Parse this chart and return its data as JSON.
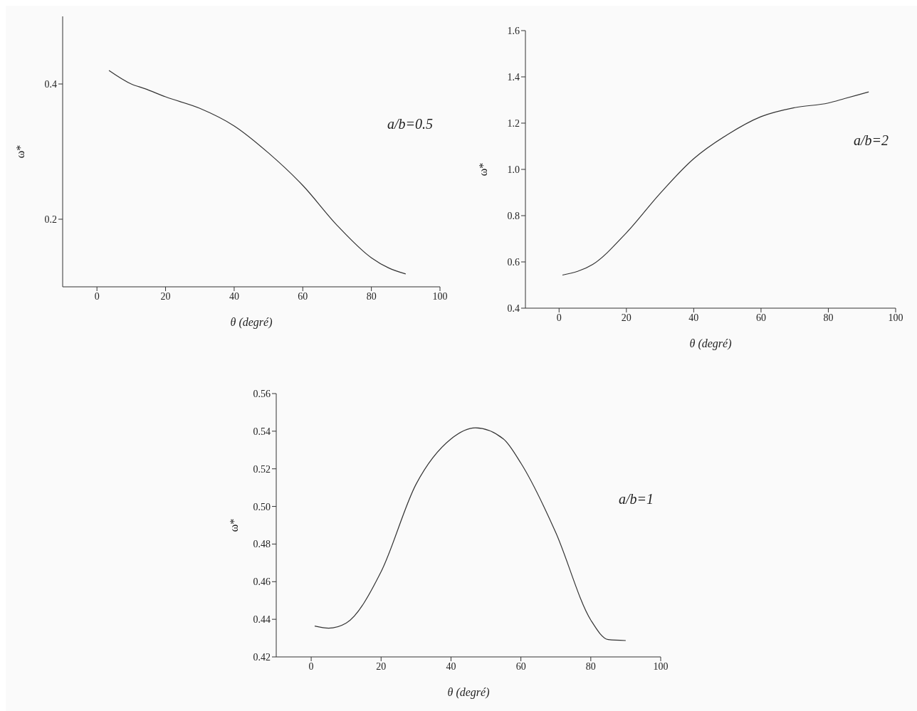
{
  "chart_data": [
    {
      "type": "line",
      "xlabel": "θ (degré)",
      "ylabel": "ω*",
      "annotations": [
        "a/b=0.5"
      ],
      "xlim": [
        -10,
        100
      ],
      "xticks": [
        0,
        20,
        40,
        60,
        80,
        100
      ],
      "ylim": [
        0.1,
        0.5
      ],
      "yticks": [
        0.2,
        0.4
      ],
      "grid": false,
      "legend": false,
      "marker": "none",
      "line_style": "solid",
      "series": [
        {
          "color": "#333333",
          "x": [
            3.5,
            10,
            14,
            20,
            30,
            40,
            50,
            60,
            70,
            80,
            85,
            90
          ],
          "values": [
            0.42,
            0.4,
            0.393,
            0.381,
            0.364,
            0.338,
            0.298,
            0.25,
            0.191,
            0.143,
            0.128,
            0.119
          ]
        }
      ]
    },
    {
      "type": "line",
      "xlabel": "θ (degré)",
      "ylabel": "ω*",
      "annotations": [
        "a/b=2"
      ],
      "xlim": [
        -10,
        100
      ],
      "xticks": [
        0,
        20,
        40,
        60,
        80,
        100
      ],
      "ylim": [
        0.4,
        1.6
      ],
      "yticks": [
        0.4,
        0.6,
        0.8,
        {
          "value": 1,
          "label": "1.0"
        },
        1.2,
        1.4,
        1.6
      ],
      "grid": false,
      "legend": false,
      "marker": "none",
      "line_style": "solid",
      "series": [
        {
          "color": "#333333",
          "x": [
            1,
            10,
            20,
            30,
            40,
            50,
            60,
            70,
            80,
            85,
            92
          ],
          "values": [
            0.543,
            0.589,
            0.726,
            0.896,
            1.046,
            1.15,
            1.228,
            1.267,
            1.287,
            1.307,
            1.335
          ]
        }
      ]
    },
    {
      "type": "line",
      "xlabel": "θ (degré)",
      "ylabel": "ω*",
      "annotations": [
        "a/b=1"
      ],
      "xlim": [
        -10,
        100
      ],
      "xticks": [
        0,
        20,
        40,
        60,
        80,
        100
      ],
      "ylim": [
        0.42,
        0.56
      ],
      "yticks": [
        0.42,
        0.44,
        0.46,
        0.48,
        {
          "value": 0.5,
          "label": "0.50"
        },
        0.52,
        0.54,
        0.56
      ],
      "grid": false,
      "legend": false,
      "marker": "none",
      "line_style": "solid",
      "series": [
        {
          "color": "#333333",
          "x": [
            1,
            5,
            10,
            20,
            30,
            40,
            47,
            55,
            60,
            70,
            80,
            85,
            90
          ],
          "values": [
            0.4364,
            0.4353,
            0.438,
            0.4653,
            0.5118,
            0.5359,
            0.5418,
            0.5359,
            0.523,
            0.486,
            0.4396,
            0.4292,
            0.4287
          ]
        }
      ]
    }
  ]
}
